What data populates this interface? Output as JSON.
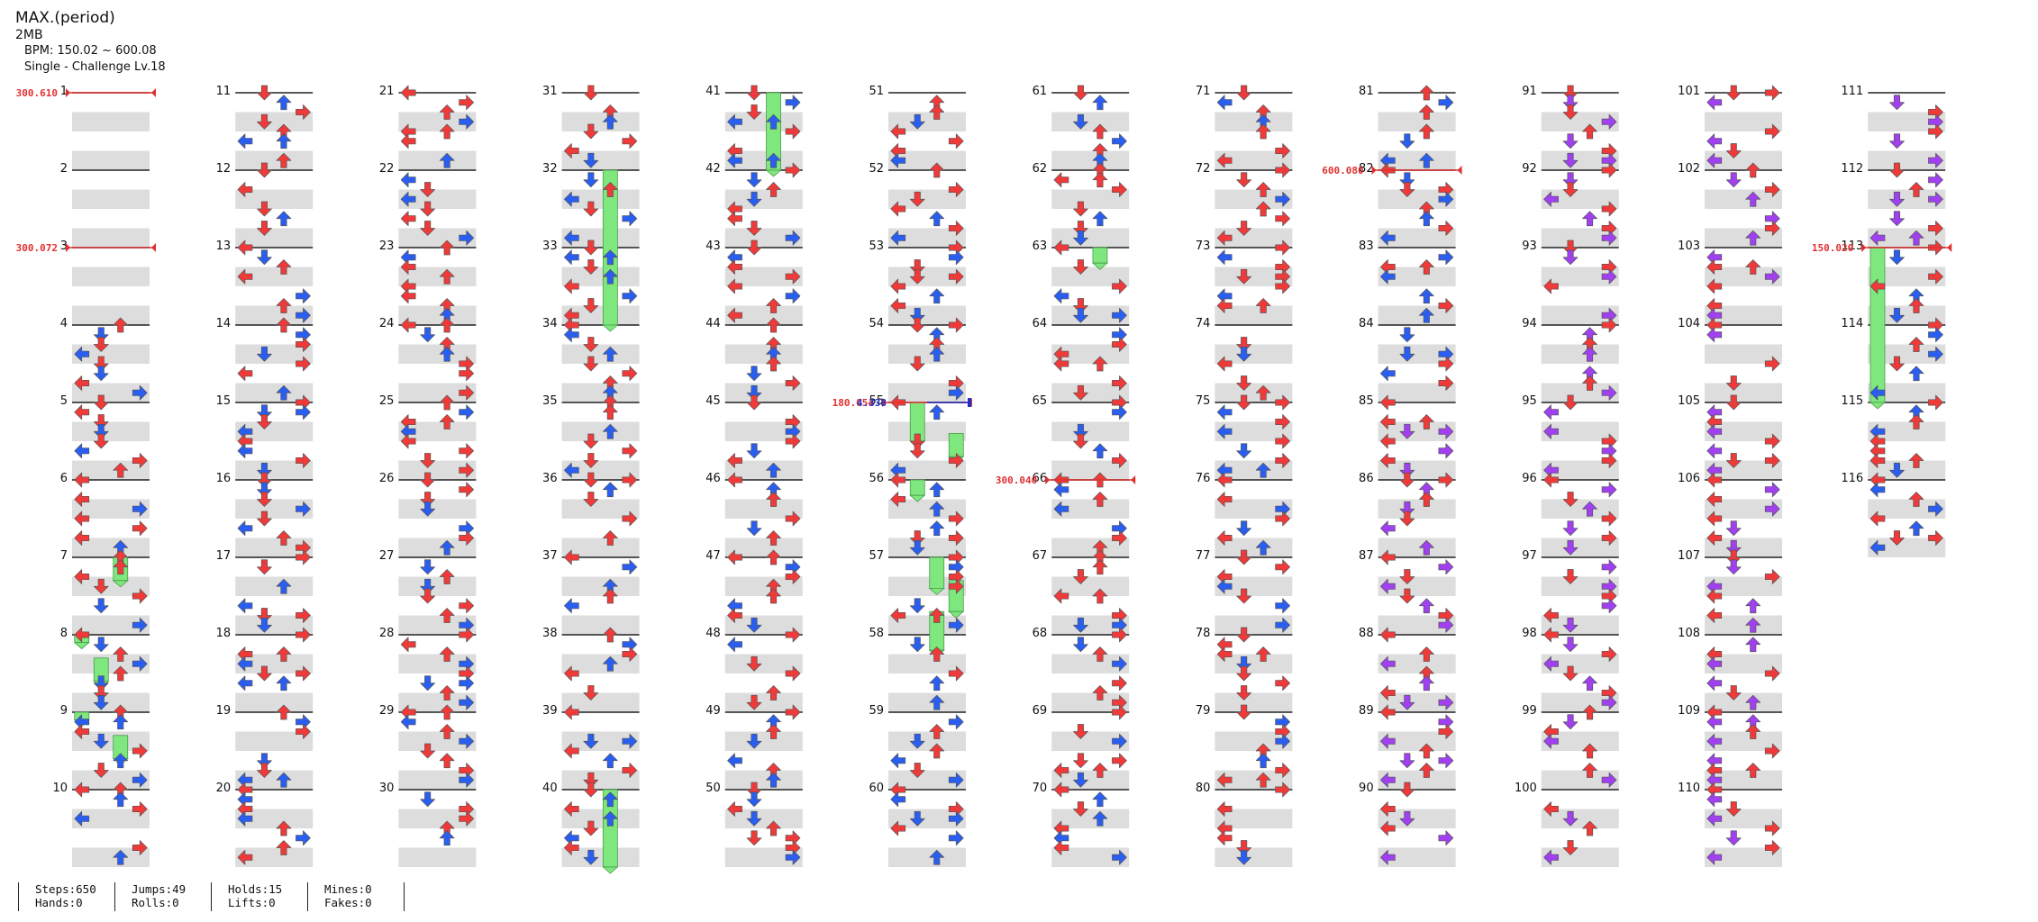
{
  "song": {
    "title": "MAX.(period)",
    "artist": "2MB",
    "bpm": "BPM: 150.02 ~ 600.08",
    "difficulty": "Single - Challenge  Lv.18"
  },
  "colors": {
    "note_quarter": "#f03a3a",
    "note_eighth": "#2a5ef0",
    "note_sixteenth": "#a040f0",
    "hold": "#7ee87e",
    "bpm_change": "#e03030",
    "stop": "#2030c8",
    "beat_band": "#dddddd"
  },
  "icons": {
    "left": "left-arrow-icon",
    "down": "down-arrow-icon",
    "up": "up-arrow-icon",
    "right": "right-arrow-icon",
    "hold": "hold-note"
  },
  "measures": {
    "first": 1,
    "last": 116,
    "per_column": 10
  },
  "events": [
    {
      "label": "300.610",
      "measure": 1,
      "kind": "bpm"
    },
    {
      "label": "300.072",
      "measure": 3,
      "kind": "bpm"
    },
    {
      "label": "180.054",
      "measure": 55,
      "kind": "bpm"
    },
    {
      "label": "4.338",
      "measure": 55,
      "kind": "stop"
    },
    {
      "label": "300.040",
      "measure": 66,
      "kind": "bpm"
    },
    {
      "label": "600.080",
      "measure": 82,
      "kind": "bpm"
    },
    {
      "label": "150.020",
      "measure": 113,
      "kind": "bpm"
    }
  ],
  "holds": [
    {
      "lane": 2,
      "from": 7.0,
      "to": 7.3
    },
    {
      "lane": 0,
      "from": 8.0,
      "to": 8.1
    },
    {
      "lane": 1,
      "from": 8.3,
      "to": 8.6
    },
    {
      "lane": 0,
      "from": 9.0,
      "to": 9.1
    },
    {
      "lane": 2,
      "from": 9.3,
      "to": 9.6
    },
    {
      "lane": 2,
      "from": 32.0,
      "to": 34.0
    },
    {
      "lane": 2,
      "from": 40.0,
      "to": 41.0
    },
    {
      "lane": 2,
      "from": 41.0,
      "to": 42.0
    },
    {
      "lane": 1,
      "from": 55.0,
      "to": 55.5
    },
    {
      "lane": 3,
      "from": 55.4,
      "to": 55.7
    },
    {
      "lane": 1,
      "from": 56.0,
      "to": 56.2
    },
    {
      "lane": 2,
      "from": 57.0,
      "to": 57.4
    },
    {
      "lane": 3,
      "from": 57.3,
      "to": 57.7
    },
    {
      "lane": 2,
      "from": 57.7,
      "to": 58.2
    },
    {
      "lane": 2,
      "from": 63.0,
      "to": 63.2
    },
    {
      "lane": 0,
      "from": 113.0,
      "to": 115.0
    }
  ],
  "stats": [
    {
      "top": "Steps:650",
      "bottom": "Hands:0"
    },
    {
      "top": "Jumps:49",
      "bottom": "Rolls:0"
    },
    {
      "top": "Holds:15",
      "bottom": "Lifts:0"
    },
    {
      "top": "Mines:0",
      "bottom": "Fakes:0"
    }
  ]
}
